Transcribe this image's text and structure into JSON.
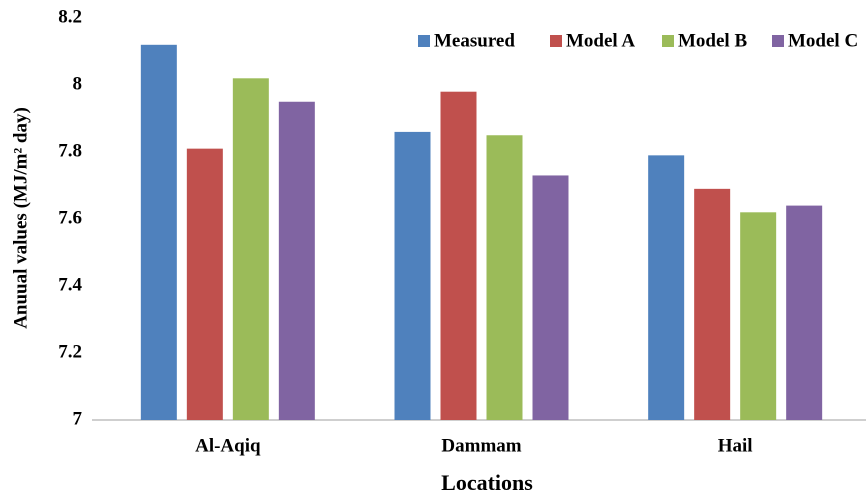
{
  "chart_data": {
    "type": "bar",
    "x_label": "Locations",
    "y_label": "Anuual values (MJ/m² day)",
    "categories": [
      "Al-Aqiq",
      "Dammam",
      "Hail"
    ],
    "series": [
      {
        "name": "Measured",
        "color": "#4f81bd",
        "values": [
          8.12,
          7.86,
          7.79
        ]
      },
      {
        "name": "Model A",
        "color": "#c0504d",
        "values": [
          7.81,
          7.98,
          7.69
        ]
      },
      {
        "name": "Model B",
        "color": "#9bbb59",
        "values": [
          8.02,
          7.85,
          7.62
        ]
      },
      {
        "name": "Model C",
        "color": "#8064a2",
        "values": [
          7.95,
          7.73,
          7.64
        ]
      }
    ],
    "ylim": [
      7,
      8.2
    ],
    "yticks": [
      7,
      7.2,
      7.4,
      7.6,
      7.8,
      8,
      8.2
    ],
    "grid": false,
    "legend": "top-right"
  }
}
